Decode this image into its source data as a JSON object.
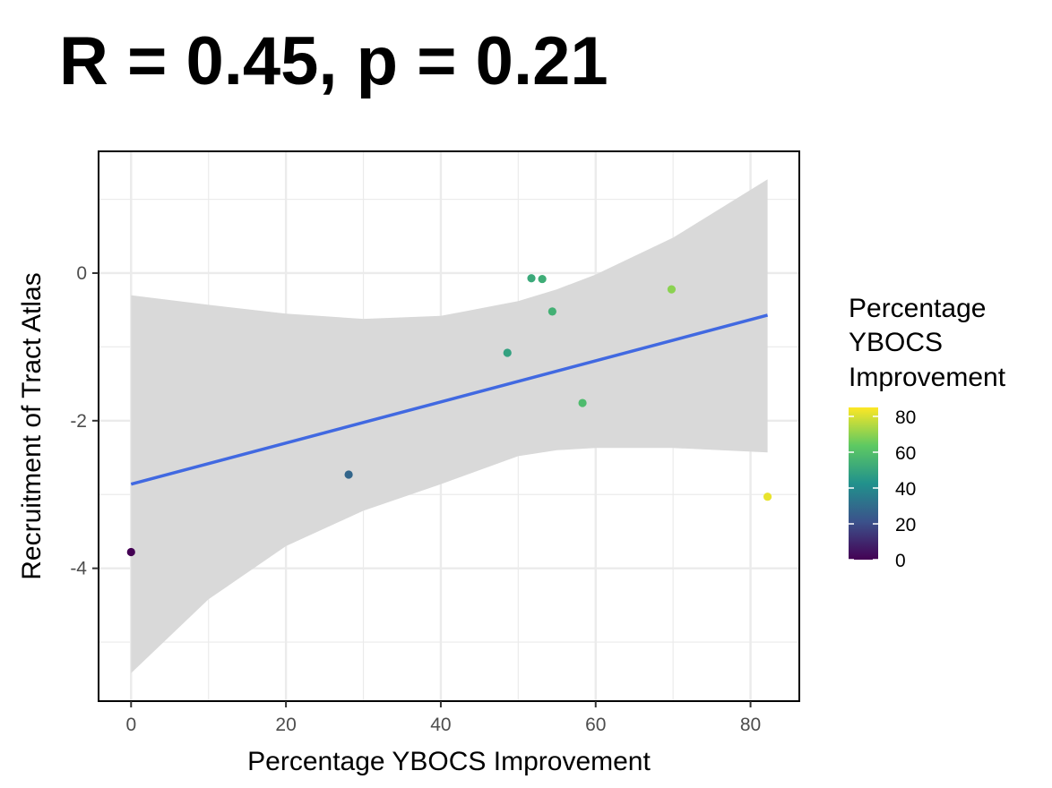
{
  "chart_data": {
    "type": "scatter",
    "title": "R = 0.45, p = 0.21",
    "xlabel": "Percentage YBOCS Improvement",
    "ylabel": "Recruitment of Tract Atlas",
    "xlim": [
      -4.2,
      86.3
    ],
    "ylim": [
      -5.8,
      1.65
    ],
    "x_ticks": [
      0,
      20,
      40,
      60,
      80
    ],
    "x_tick_labels": [
      "0",
      "20",
      "40",
      "60",
      "80"
    ],
    "y_ticks": [
      0,
      -2,
      -4
    ],
    "y_tick_labels": [
      "0",
      "-2",
      "-4"
    ],
    "grid": true,
    "points": [
      {
        "x": 0,
        "y": -3.78,
        "color_value": 0
      },
      {
        "x": 28.1,
        "y": -2.73,
        "color_value": 28.1
      },
      {
        "x": 48.6,
        "y": -1.08,
        "color_value": 48.6
      },
      {
        "x": 51.7,
        "y": -0.07,
        "color_value": 51.7
      },
      {
        "x": 53.1,
        "y": -0.08,
        "color_value": 53.1
      },
      {
        "x": 54.4,
        "y": -0.52,
        "color_value": 54.4
      },
      {
        "x": 58.3,
        "y": -1.76,
        "color_value": 58.3
      },
      {
        "x": 69.8,
        "y": -0.22,
        "color_value": 69.8
      },
      {
        "x": 82.2,
        "y": -3.03,
        "color_value": 82.2
      }
    ],
    "fit_line": {
      "x": [
        0,
        82.2
      ],
      "y": [
        -2.86,
        -0.57
      ],
      "color": "#4169e1"
    },
    "confidence_band": {
      "x": [
        0,
        10,
        20,
        30,
        40,
        50,
        55,
        60,
        70,
        82.2
      ],
      "upper": [
        -0.3,
        -0.43,
        -0.55,
        -0.62,
        -0.58,
        -0.38,
        -0.22,
        -0.02,
        0.48,
        1.27
      ],
      "lower": [
        -5.42,
        -4.42,
        -3.7,
        -3.22,
        -2.86,
        -2.48,
        -2.4,
        -2.37,
        -2.37,
        -2.43
      ],
      "color": "#d9d9d9"
    },
    "legend": {
      "title": [
        "Percentage",
        "YBOCS",
        "Improvement"
      ],
      "position": "right",
      "scale": "viridis",
      "range": [
        0,
        85
      ],
      "ticks": [
        0,
        20,
        40,
        60,
        80
      ],
      "tick_labels": [
        "0",
        "20",
        "40",
        "60",
        "80"
      ],
      "colors": [
        "#440154",
        "#3b528b",
        "#21918c",
        "#5ec962",
        "#fde725"
      ]
    },
    "panel_border_color": "#000000",
    "grid_color": "#ebebeb"
  }
}
